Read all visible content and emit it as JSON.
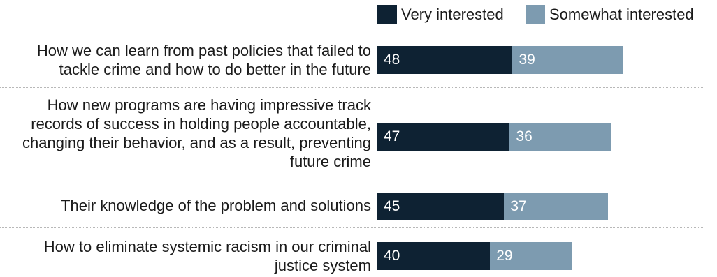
{
  "chart_data": {
    "type": "bar",
    "orientation": "horizontal",
    "stacked": true,
    "title": "",
    "xlabel": "",
    "ylabel": "",
    "xlim": [
      0,
      100
    ],
    "grid": false,
    "legend_position": "top-right",
    "colors": {
      "very": "#0e2233",
      "somewhat": "#7d9bb0"
    },
    "categories": [
      "How we can learn from past policies that failed to tackle crime and how to do better in the future",
      "How new programs are having impressive track records of success in holding people accountable, changing their behavior, and as a result, preventing future crime",
      "Their knowledge of the problem and solutions",
      "How to eliminate systemic racism in our criminal justice system"
    ],
    "series": [
      {
        "name": "Very interested",
        "values": [
          48,
          47,
          45,
          40
        ]
      },
      {
        "name": "Somewhat interested",
        "values": [
          39,
          36,
          37,
          29
        ]
      }
    ]
  }
}
